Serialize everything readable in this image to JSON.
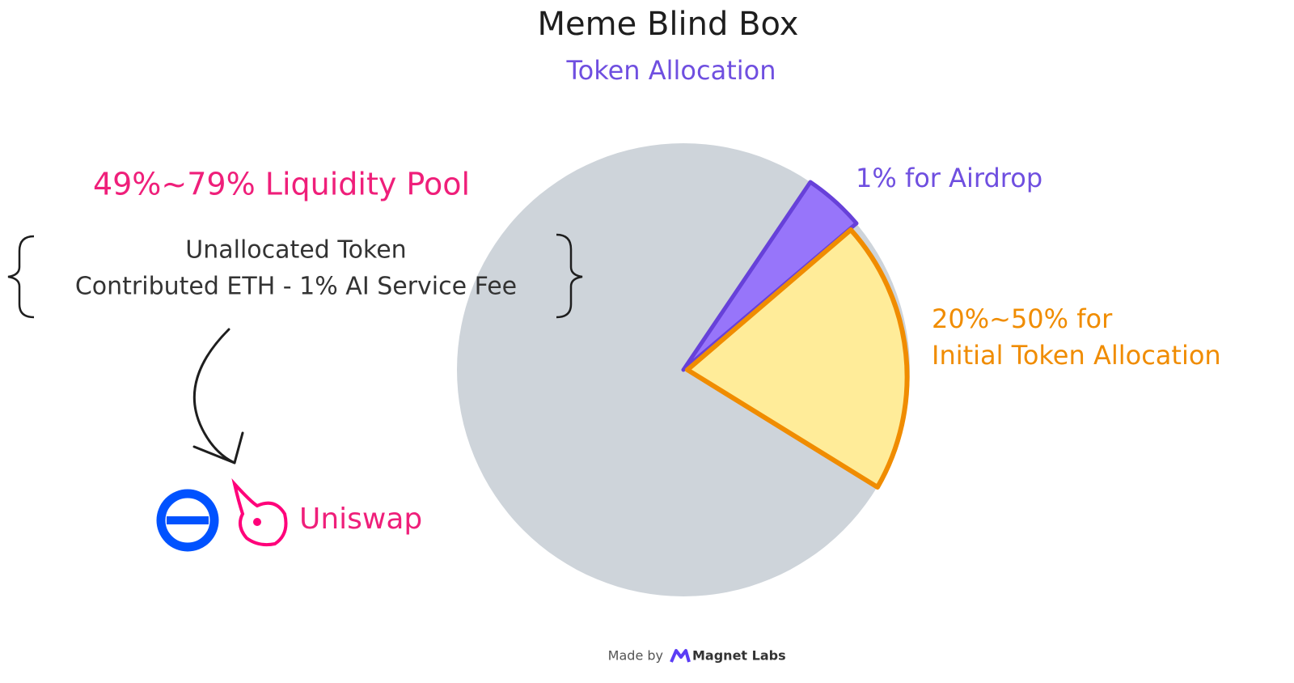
{
  "header": {
    "title": "Meme Blind Box",
    "subtitle": "Token Allocation"
  },
  "labels": {
    "liquidity_pool": "49%~79% Liquidity Pool",
    "unallocated": [
      "Unallocated Token",
      "Contributed ETH - 1% AI Service Fee"
    ],
    "airdrop": "1% for Airdrop",
    "initial": [
      "20%~50% for",
      "Initial Token Allocation"
    ]
  },
  "destination": "Uniswap",
  "footer": {
    "made_by": "Made by",
    "brand": "Magnet Labs"
  }
}
